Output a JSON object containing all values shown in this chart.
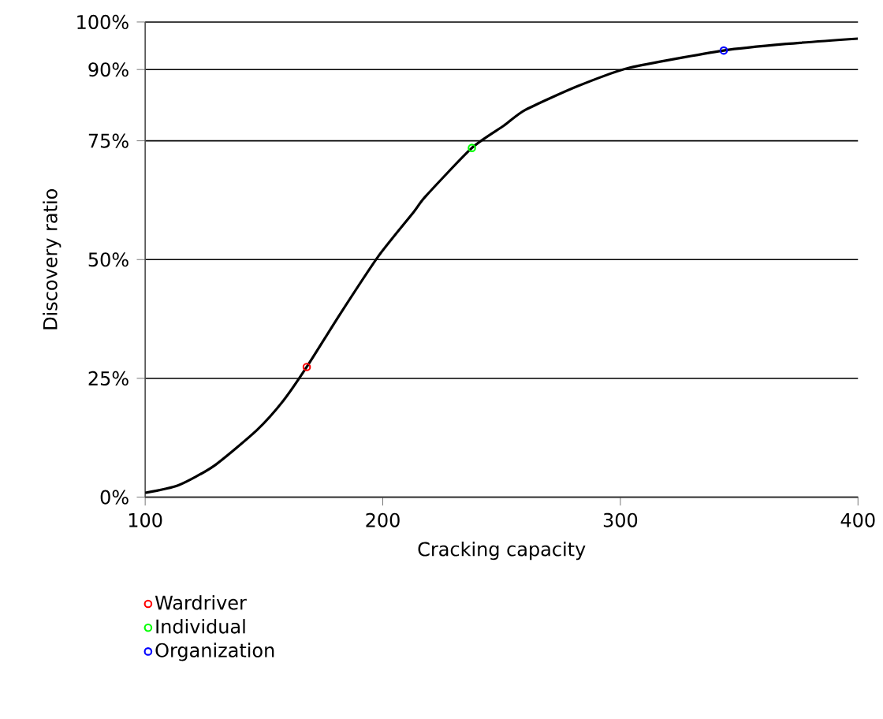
{
  "chart_data": {
    "type": "line",
    "xlabel": "Cracking capacity",
    "ylabel": "Discovery ratio",
    "xlim": [
      100,
      400
    ],
    "ylim": [
      0,
      100
    ],
    "xticks": [
      100,
      200,
      300,
      400
    ],
    "yticks": [
      {
        "value": 0,
        "label": "0%"
      },
      {
        "value": 25,
        "label": "25%"
      },
      {
        "value": 50,
        "label": "50%"
      },
      {
        "value": 75,
        "label": "75%"
      },
      {
        "value": 90,
        "label": "90%"
      },
      {
        "value": 100,
        "label": "100%"
      }
    ],
    "grid": "y",
    "legend": "bottom left",
    "series": [
      {
        "color": "#000000",
        "marker": "none",
        "x": [
          100,
          114,
          129,
          147,
          158,
          168,
          182,
          198,
          213,
          218,
          237.5,
          251,
          260,
          282,
          304,
          343.5,
          370,
          400
        ],
        "values": [
          0.9,
          2.5,
          6.6,
          14.1,
          20.2,
          27.4,
          38.5,
          50.6,
          60.0,
          63.3,
          73.5,
          78.2,
          81.5,
          86.5,
          90.4,
          94.0,
          95.4,
          96.5
        ]
      },
      {
        "type": "scatter",
        "name": "Wardriver",
        "color": "#ff0000",
        "marker": "circle",
        "x": [
          168
        ],
        "values": [
          27.4
        ]
      },
      {
        "type": "scatter",
        "name": "Individual",
        "color": "#00ff00",
        "marker": "circle",
        "x": [
          237.5
        ],
        "values": [
          73.5
        ]
      },
      {
        "type": "scatter",
        "name": "Organization",
        "color": "#0000ff",
        "marker": "circle",
        "x": [
          343.5
        ],
        "values": [
          94.0
        ]
      }
    ]
  }
}
